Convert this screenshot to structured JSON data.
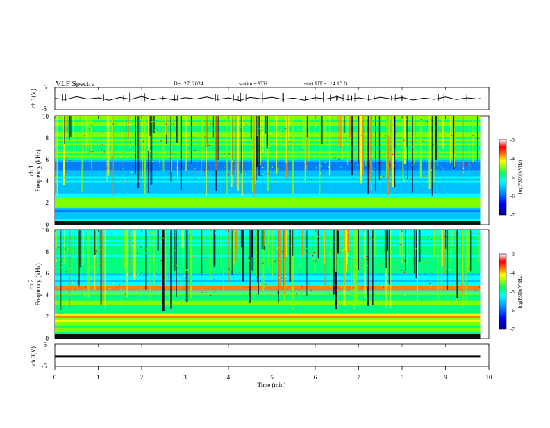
{
  "header": {
    "title": "VLF Spectra",
    "date": "Dec.27, 2024",
    "station": "station=ATH",
    "start": "start UT =  14:10:0"
  },
  "chart_data": [
    {
      "type": "line",
      "panel": "ch1-waveform",
      "ylabel": "ch.1(V)",
      "y_ticks": [
        "5",
        "-5"
      ],
      "ylim": [
        -5,
        5
      ],
      "x": [
        0,
        0.25,
        0.5,
        0.75,
        1,
        1.25,
        1.5,
        1.75,
        2,
        2.25,
        2.5,
        2.75,
        3,
        3.25,
        3.5,
        3.75,
        4,
        4.25,
        4.5,
        4.75,
        5,
        5.25,
        5.5,
        5.75,
        6,
        6.25,
        6.5,
        6.75,
        7,
        7.25,
        7.5,
        7.75,
        8,
        8.25,
        8.5,
        8.75,
        9,
        9.25,
        9.5,
        9.75,
        9.8
      ],
      "y": [
        0.1,
        -0.4,
        0.8,
        -0.2,
        0.3,
        -0.7,
        0.5,
        -0.3,
        0.9,
        -0.5,
        0.2,
        -0.6,
        0.4,
        -0.2,
        0.7,
        -0.4,
        0.3,
        -0.8,
        0.5,
        -0.1,
        0.6,
        -0.3,
        0.2,
        -0.7,
        0.4,
        -0.2,
        0.8,
        -0.5,
        0.3,
        -0.4,
        0.6,
        -0.2,
        0.5,
        -0.6,
        0.2,
        -0.3,
        0.7,
        -0.4,
        0.3,
        -0.2,
        0.1
      ]
    },
    {
      "type": "heatmap",
      "panel": "ch1-spectrogram",
      "ylabel_channel": "ch.1",
      "ylabel": "Frequency (kHz)",
      "y_ticks": [
        "10",
        "8",
        "6",
        "4",
        "2",
        "0"
      ],
      "ylim": [
        0,
        10
      ],
      "colorbar_label": "log(PSD)(V²/Hz)",
      "colorbar_ticks": [
        "-3",
        "-4",
        "-5",
        "-6",
        "-7"
      ],
      "zlim": [
        -7,
        -3
      ]
    },
    {
      "type": "heatmap",
      "panel": "ch2-spectrogram",
      "ylabel_channel": "ch.2",
      "ylabel": "Frequency (kHz)",
      "y_ticks": [
        "10",
        "8",
        "6",
        "4",
        "2",
        "0"
      ],
      "ylim": [
        0,
        10
      ],
      "colorbar_label": "log(PSD)(V²/Hz)",
      "colorbar_ticks": [
        "-3",
        "-4",
        "-5",
        "-6",
        "-7"
      ],
      "zlim": [
        -7,
        -3
      ]
    },
    {
      "type": "line",
      "panel": "ch3-waveform",
      "ylabel": "ch.3(V)",
      "y_ticks": [
        "5",
        "-5"
      ],
      "ylim": [
        -5,
        5
      ],
      "x": [
        0,
        9.8
      ],
      "y": [
        -0.6,
        -0.6
      ]
    }
  ],
  "x_axis": {
    "label": "Time (min)",
    "ticks": [
      "0",
      "1",
      "2",
      "3",
      "4",
      "5",
      "6",
      "7",
      "8",
      "9",
      "10"
    ],
    "xlim": [
      0,
      10
    ]
  },
  "colors": {
    "colorscale": [
      "#000080",
      "#0000ff",
      "#0080ff",
      "#00c0ff",
      "#00ffff",
      "#00ff80",
      "#80ff00",
      "#ffff00",
      "#ff8000",
      "#ff0000",
      "#ffffff"
    ]
  }
}
